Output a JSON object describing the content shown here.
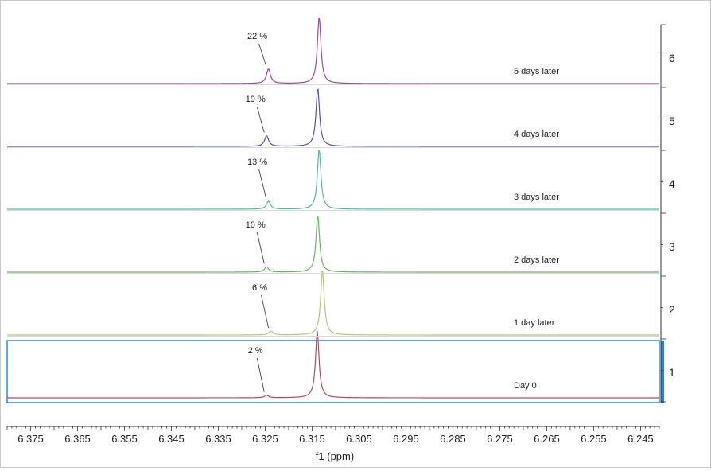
{
  "chart_data": {
    "type": "line",
    "title": "",
    "xlabel": "f1 (ppm)",
    "ylabel": "",
    "x_reversed": true,
    "xlim": [
      6.38,
      6.241
    ],
    "x_ticks": [
      6.375,
      6.365,
      6.355,
      6.345,
      6.335,
      6.325,
      6.315,
      6.305,
      6.295,
      6.285,
      6.275,
      6.265,
      6.255,
      6.245
    ],
    "x_tick_labels": [
      "6.375",
      "6.365",
      "6.355",
      "6.345",
      "6.335",
      "6.325",
      "6.315",
      "6.305",
      "6.295",
      "6.285",
      "6.275",
      "6.265",
      "6.255",
      "6.245"
    ],
    "stack_ticks": [
      "1",
      "2",
      "3",
      "4",
      "5",
      "6"
    ],
    "selected_trace": 1,
    "series": [
      {
        "index": 1,
        "name": "Day 0",
        "color": "#b24a64",
        "major_peak_ppm": 6.3139,
        "minor_peak_ppm": 6.3247,
        "minor_percent": "2 %",
        "major_height": 1.0,
        "minor_height": 0.04
      },
      {
        "index": 2,
        "name": "1 day later",
        "color": "#b8c47a",
        "major_peak_ppm": 6.3128,
        "minor_peak_ppm": 6.3238,
        "minor_percent": "6 %",
        "major_height": 0.98,
        "minor_height": 0.06
      },
      {
        "index": 3,
        "name": "2 days later",
        "color": "#63b85e",
        "major_peak_ppm": 6.3138,
        "minor_peak_ppm": 6.3247,
        "minor_percent": "10 %",
        "major_height": 0.85,
        "minor_height": 0.08
      },
      {
        "index": 4,
        "name": "3 days later",
        "color": "#57b7a9",
        "major_peak_ppm": 6.3135,
        "minor_peak_ppm": 6.3243,
        "minor_percent": "13 %",
        "major_height": 0.9,
        "minor_height": 0.12
      },
      {
        "index": 5,
        "name": "4 days later",
        "color": "#5454a4",
        "major_peak_ppm": 6.3138,
        "minor_peak_ppm": 6.3247,
        "minor_percent": "19 %",
        "major_height": 0.88,
        "minor_height": 0.16
      },
      {
        "index": 6,
        "name": "5 days later",
        "color": "#a04a9a",
        "major_peak_ppm": 6.3135,
        "minor_peak_ppm": 6.3243,
        "minor_percent": "22 %",
        "major_height": 1.0,
        "minor_height": 0.22
      }
    ]
  },
  "colors": {
    "axis": "#333333",
    "selection_box": "#3d8fe0",
    "selection_bar": "#2f7fd8",
    "baseline_grey": "#d8d8d8"
  }
}
